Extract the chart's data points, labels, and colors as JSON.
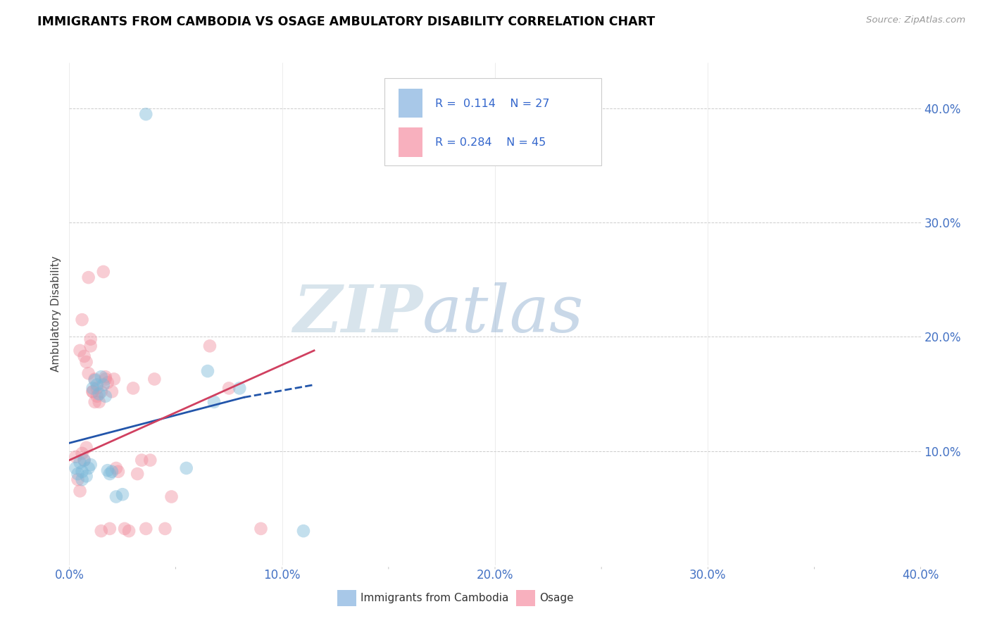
{
  "title": "IMMIGRANTS FROM CAMBODIA VS OSAGE AMBULATORY DISABILITY CORRELATION CHART",
  "source_text": "Source: ZipAtlas.com",
  "ylabel": "Ambulatory Disability",
  "xmin": 0.0,
  "xmax": 0.4,
  "ymin": 0.0,
  "ymax": 0.44,
  "xticks": [
    0.0,
    0.1,
    0.2,
    0.3,
    0.4
  ],
  "yticks": [
    0.1,
    0.2,
    0.3,
    0.4
  ],
  "xtick_labels": [
    "0.0%",
    "10.0%",
    "20.0%",
    "30.0%",
    "40.0%"
  ],
  "ytick_labels": [
    "10.0%",
    "20.0%",
    "30.0%",
    "40.0%"
  ],
  "legend_label1": "Immigrants from Cambodia",
  "legend_label2": "Osage",
  "blue_color": "#7ab8d9",
  "pink_color": "#f090a0",
  "blue_legend_color": "#a8c8e8",
  "pink_legend_color": "#f8b0be",
  "blue_scatter": [
    [
      0.003,
      0.085
    ],
    [
      0.004,
      0.08
    ],
    [
      0.005,
      0.09
    ],
    [
      0.006,
      0.082
    ],
    [
      0.006,
      0.075
    ],
    [
      0.007,
      0.092
    ],
    [
      0.008,
      0.078
    ],
    [
      0.009,
      0.085
    ],
    [
      0.01,
      0.088
    ],
    [
      0.011,
      0.155
    ],
    [
      0.012,
      0.162
    ],
    [
      0.013,
      0.158
    ],
    [
      0.014,
      0.15
    ],
    [
      0.015,
      0.165
    ],
    [
      0.016,
      0.158
    ],
    [
      0.017,
      0.148
    ],
    [
      0.018,
      0.083
    ],
    [
      0.019,
      0.08
    ],
    [
      0.02,
      0.082
    ],
    [
      0.022,
      0.06
    ],
    [
      0.025,
      0.062
    ],
    [
      0.036,
      0.395
    ],
    [
      0.055,
      0.085
    ],
    [
      0.065,
      0.17
    ],
    [
      0.068,
      0.143
    ],
    [
      0.08,
      0.155
    ],
    [
      0.11,
      0.03
    ]
  ],
  "pink_scatter": [
    [
      0.003,
      0.095
    ],
    [
      0.004,
      0.075
    ],
    [
      0.005,
      0.065
    ],
    [
      0.005,
      0.188
    ],
    [
      0.006,
      0.098
    ],
    [
      0.006,
      0.215
    ],
    [
      0.007,
      0.092
    ],
    [
      0.007,
      0.183
    ],
    [
      0.008,
      0.103
    ],
    [
      0.008,
      0.178
    ],
    [
      0.009,
      0.168
    ],
    [
      0.009,
      0.252
    ],
    [
      0.01,
      0.192
    ],
    [
      0.01,
      0.198
    ],
    [
      0.011,
      0.152
    ],
    [
      0.011,
      0.152
    ],
    [
      0.012,
      0.163
    ],
    [
      0.012,
      0.143
    ],
    [
      0.013,
      0.148
    ],
    [
      0.013,
      0.155
    ],
    [
      0.014,
      0.143
    ],
    [
      0.015,
      0.152
    ],
    [
      0.015,
      0.03
    ],
    [
      0.016,
      0.257
    ],
    [
      0.017,
      0.163
    ],
    [
      0.017,
      0.165
    ],
    [
      0.018,
      0.16
    ],
    [
      0.019,
      0.032
    ],
    [
      0.02,
      0.152
    ],
    [
      0.021,
      0.163
    ],
    [
      0.022,
      0.085
    ],
    [
      0.023,
      0.082
    ],
    [
      0.026,
      0.032
    ],
    [
      0.028,
      0.03
    ],
    [
      0.03,
      0.155
    ],
    [
      0.032,
      0.08
    ],
    [
      0.034,
      0.092
    ],
    [
      0.036,
      0.032
    ],
    [
      0.038,
      0.092
    ],
    [
      0.04,
      0.163
    ],
    [
      0.045,
      0.032
    ],
    [
      0.048,
      0.06
    ],
    [
      0.066,
      0.192
    ],
    [
      0.075,
      0.155
    ],
    [
      0.09,
      0.032
    ]
  ],
  "blue_line": [
    [
      0.0,
      0.107
    ],
    [
      0.082,
      0.147
    ]
  ],
  "blue_dashed_line": [
    [
      0.082,
      0.147
    ],
    [
      0.115,
      0.158
    ]
  ],
  "pink_line": [
    [
      0.0,
      0.092
    ],
    [
      0.115,
      0.188
    ]
  ],
  "background_color": "#ffffff",
  "grid_color": "#cccccc",
  "title_color": "#000000",
  "axis_color": "#4472c4",
  "watermark_zip": "ZIP",
  "watermark_atlas": "atlas",
  "scatter_size": 180,
  "scatter_alpha": 0.45
}
